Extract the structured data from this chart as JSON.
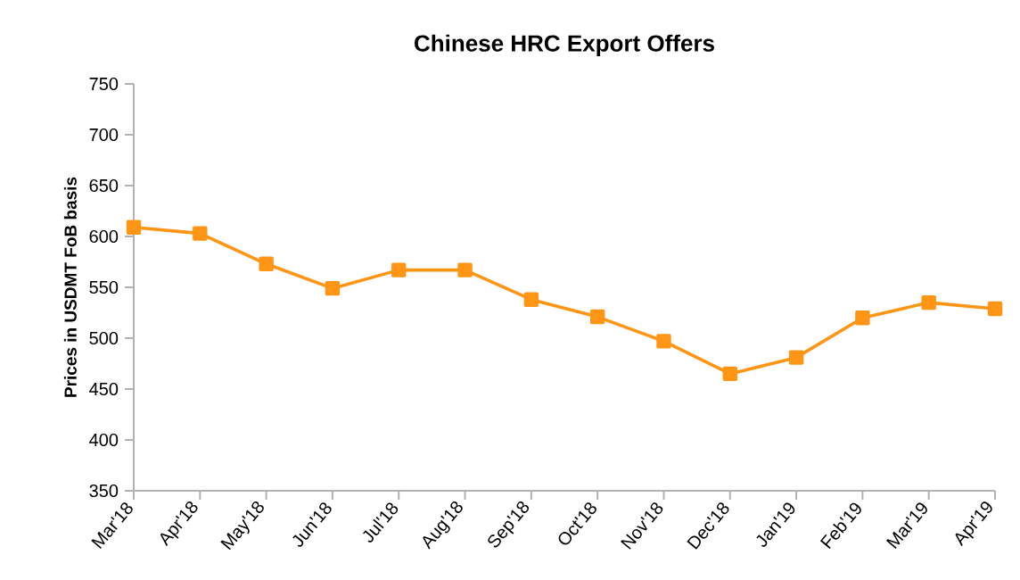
{
  "chart_data": {
    "type": "line",
    "title": "Chinese HRC Export Offers",
    "ylabel": "Prices in USDMT FoB basis",
    "categories": [
      "Mar'18",
      "Apr'18",
      "May'18",
      "Jun'18",
      "Jul'18",
      "Aug'18",
      "Sep'18",
      "Oct'18",
      "Nov'18",
      "Dec'18",
      "Jan'19",
      "Feb'19",
      "Mar'19",
      "Apr'19"
    ],
    "series": [
      {
        "color": "#ff9515",
        "values": [
          609,
          603,
          573,
          549,
          567,
          567,
          538,
          521,
          497,
          465,
          481,
          520,
          535,
          529
        ]
      }
    ],
    "ylim": [
      350,
      750
    ],
    "yticks": [
      350,
      400,
      450,
      500,
      550,
      600,
      650,
      700,
      750
    ],
    "marker": "square",
    "line_style": "solid"
  }
}
